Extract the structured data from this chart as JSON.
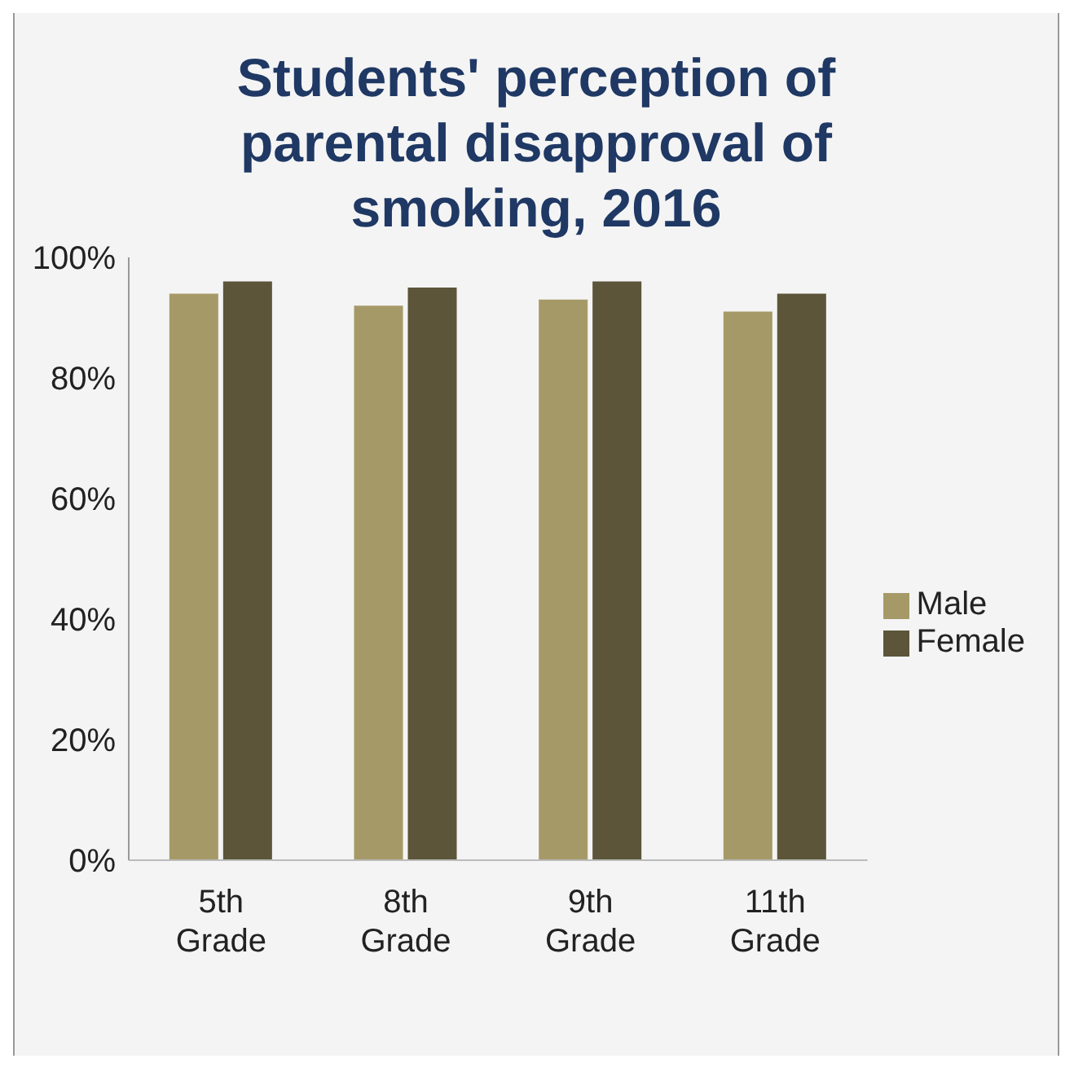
{
  "chart_data": {
    "type": "bar",
    "title": "Students' perception of parental disapproval of smoking, 2016",
    "categories": [
      "5th Grade",
      "8th Grade",
      "9th Grade",
      "11th Grade"
    ],
    "series": [
      {
        "name": "Male",
        "color": "#a59a67",
        "values": [
          94,
          92,
          93,
          91
        ]
      },
      {
        "name": "Female",
        "color": "#5c5539",
        "values": [
          96,
          95,
          96,
          94
        ]
      }
    ],
    "ylim": [
      0,
      100
    ],
    "yticks": [
      {
        "value": 0,
        "label": "0%"
      },
      {
        "value": 20,
        "label": "20%"
      },
      {
        "value": 40,
        "label": "40%"
      },
      {
        "value": 60,
        "label": "60%"
      },
      {
        "value": 80,
        "label": "80%"
      },
      {
        "value": 100,
        "label": "100%"
      }
    ],
    "grid": false,
    "legend": "right"
  }
}
